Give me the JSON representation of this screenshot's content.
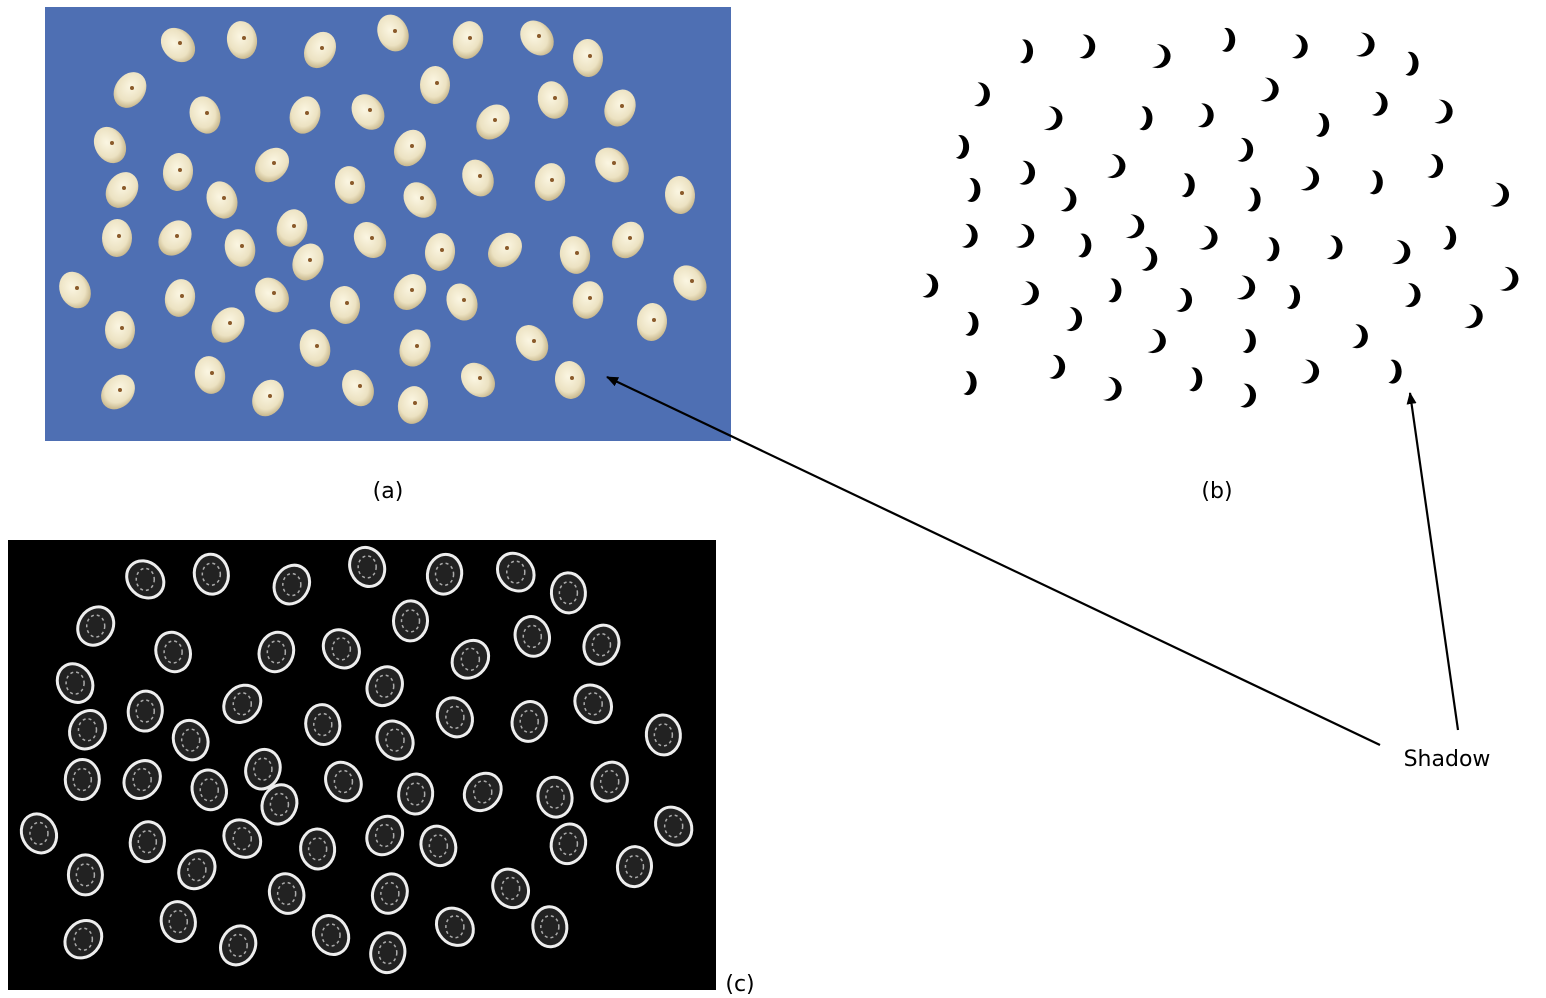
{
  "panels": [
    {
      "label": "(a)"
    },
    {
      "label": "(b)"
    },
    {
      "label": "(c)"
    }
  ],
  "annotation": "Shadow"
}
